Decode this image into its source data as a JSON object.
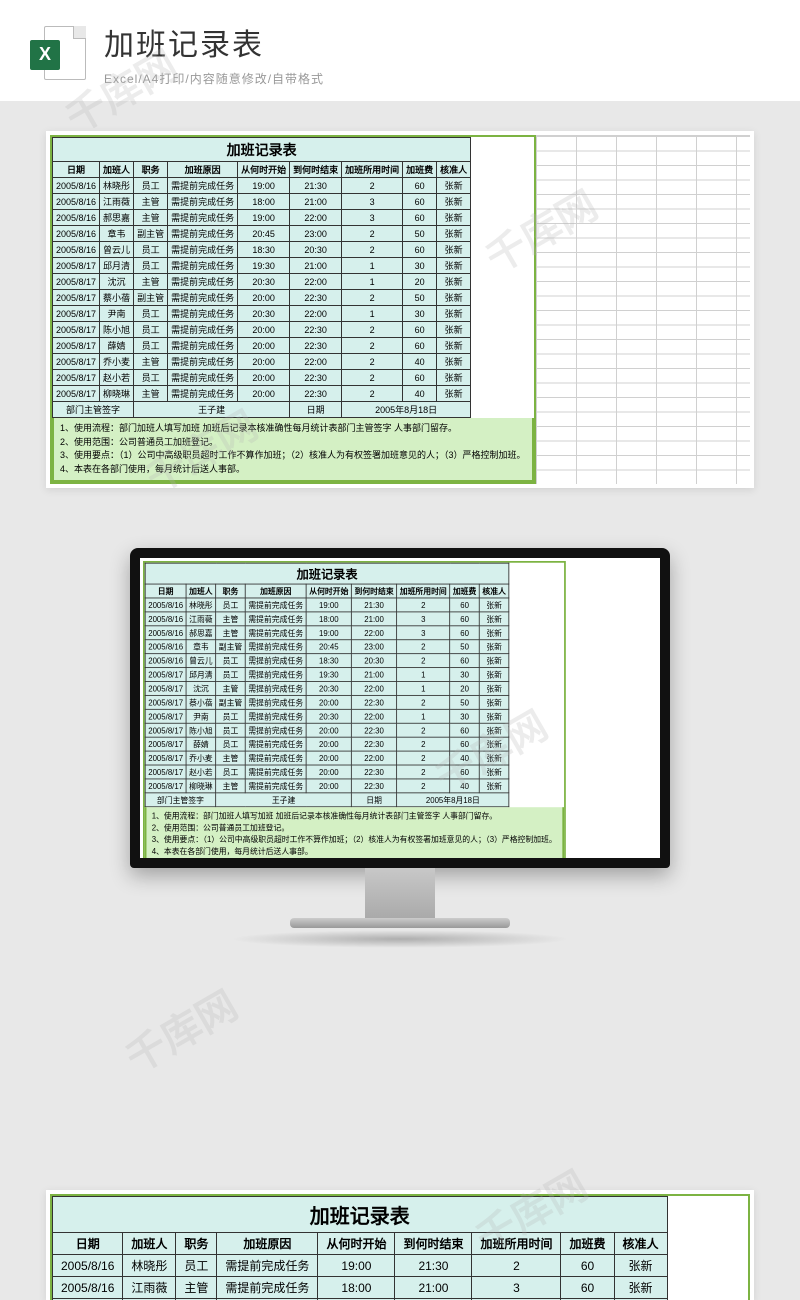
{
  "header": {
    "title": "加班记录表",
    "subtitle": "Excel/A4打印/内容随意修改/自带格式",
    "icon_letter": "X"
  },
  "watermark_text": "千库网",
  "table": {
    "title": "加班记录表",
    "columns": [
      "日期",
      "加班人",
      "职务",
      "加班原因",
      "从何时开始",
      "到何时结束",
      "加班所用时间",
      "加班费",
      "核准人"
    ],
    "rows": [
      [
        "2005/8/16",
        "林晓彤",
        "员工",
        "需提前完成任务",
        "19:00",
        "21:30",
        "2",
        "60",
        "张新"
      ],
      [
        "2005/8/16",
        "江雨薇",
        "主管",
        "需提前完成任务",
        "18:00",
        "21:00",
        "3",
        "60",
        "张新"
      ],
      [
        "2005/8/16",
        "郝思嘉",
        "主管",
        "需提前完成任务",
        "19:00",
        "22:00",
        "3",
        "60",
        "张新"
      ],
      [
        "2005/8/16",
        "章韦",
        "副主管",
        "需提前完成任务",
        "20:45",
        "23:00",
        "2",
        "50",
        "张新"
      ],
      [
        "2005/8/16",
        "曾云儿",
        "员工",
        "需提前完成任务",
        "18:30",
        "20:30",
        "2",
        "60",
        "张新"
      ],
      [
        "2005/8/17",
        "邱月清",
        "员工",
        "需提前完成任务",
        "19:30",
        "21:00",
        "1",
        "30",
        "张新"
      ],
      [
        "2005/8/17",
        "沈沉",
        "主管",
        "需提前完成任务",
        "20:30",
        "22:00",
        "1",
        "20",
        "张新"
      ],
      [
        "2005/8/17",
        "蔡小蓓",
        "副主管",
        "需提前完成任务",
        "20:00",
        "22:30",
        "2",
        "50",
        "张新"
      ],
      [
        "2005/8/17",
        "尹南",
        "员工",
        "需提前完成任务",
        "20:30",
        "22:00",
        "1",
        "30",
        "张新"
      ],
      [
        "2005/8/17",
        "陈小旭",
        "员工",
        "需提前完成任务",
        "20:00",
        "22:30",
        "2",
        "60",
        "张新"
      ],
      [
        "2005/8/17",
        "薛婧",
        "员工",
        "需提前完成任务",
        "20:00",
        "22:30",
        "2",
        "60",
        "张新"
      ],
      [
        "2005/8/17",
        "乔小麦",
        "主管",
        "需提前完成任务",
        "20:00",
        "22:00",
        "2",
        "40",
        "张新"
      ],
      [
        "2005/8/17",
        "赵小若",
        "员工",
        "需提前完成任务",
        "20:00",
        "22:30",
        "2",
        "60",
        "张新"
      ],
      [
        "2005/8/17",
        "柳晓琳",
        "主管",
        "需提前完成任务",
        "20:00",
        "22:30",
        "2",
        "40",
        "张新"
      ]
    ],
    "signature": {
      "label": "部门主管签字",
      "name": "王子建",
      "date_label": "日期",
      "date_value": "2005年8月18日"
    },
    "notes": [
      "1、使用流程：部门加班人填写加班 加班后记录本核准确性每月统计表部门主管签字 人事部门留存。",
      "2、使用范围：公司普通员工加班登记。",
      "3、使用要点：（1）公司中高级职员超时工作不算作加班；（2）核准人为有权签署加班意见的人；（3）严格控制加班。",
      "4、本表在各部门使用，每月统计后送人事部。"
    ],
    "colors": {
      "cell_bg": "#d6f0ec",
      "border": "#333333",
      "outer_border": "#7cb342",
      "notes_bg": "#d4f0c4"
    }
  }
}
